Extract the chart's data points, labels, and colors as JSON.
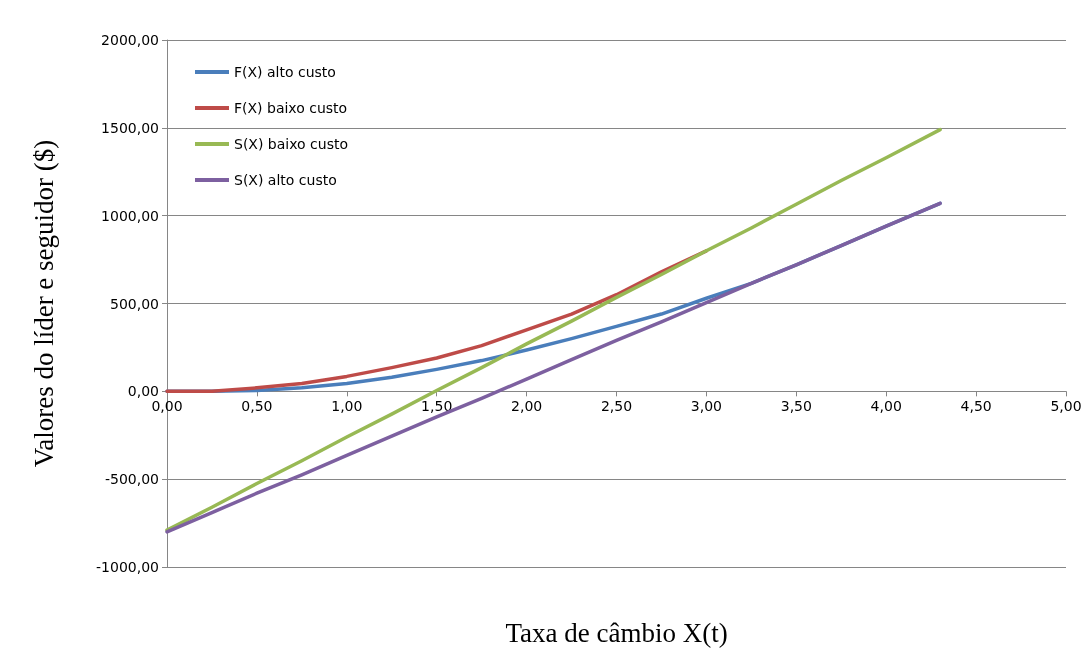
{
  "chart_data": {
    "type": "line",
    "xlabel": "Taxa de câmbio X(t)",
    "ylabel": "Valores do líder e seguidor ($)",
    "x": [
      0,
      0.25,
      0.5,
      0.75,
      1,
      1.25,
      1.5,
      1.75,
      2,
      2.25,
      2.5,
      2.75,
      3,
      3.25,
      3.5,
      3.75,
      4,
      4.3
    ],
    "series": [
      {
        "name": "F(X) alto custo",
        "color": "#4a7ebb",
        "values": [
          0,
          0,
          5,
          20,
          45,
          80,
          125,
          175,
          235,
          300,
          370,
          440,
          530,
          615,
          720,
          830,
          940,
          1070
        ]
      },
      {
        "name": "F(X) baixo custo",
        "color": "#be4b48",
        "values": [
          0,
          0,
          20,
          45,
          85,
          135,
          190,
          260,
          350,
          440,
          550,
          680,
          800,
          null,
          null,
          null,
          null,
          null
        ]
      },
      {
        "name": "S(X) baixo custo",
        "color": "#98b954",
        "values": [
          -790,
          -660,
          -525,
          -395,
          -260,
          -130,
          5,
          135,
          270,
          400,
          535,
          665,
          800,
          930,
          1065,
          1200,
          1330,
          1490
        ]
      },
      {
        "name": "S(X) alto custo",
        "color": "#7d60a0",
        "values": [
          -800,
          -690,
          -580,
          -475,
          -365,
          -255,
          -145,
          -40,
          70,
          180,
          290,
          395,
          505,
          615,
          720,
          830,
          940,
          1070
        ]
      }
    ],
    "xlim": [
      0,
      5
    ],
    "xticks": [
      {
        "value": 0,
        "label": "0,00"
      },
      {
        "value": 0.5,
        "label": "0,50"
      },
      {
        "value": 1,
        "label": "1,00"
      },
      {
        "value": 1.5,
        "label": "1,50"
      },
      {
        "value": 2,
        "label": "2,00"
      },
      {
        "value": 2.5,
        "label": "2,50"
      },
      {
        "value": 3,
        "label": "3,00"
      },
      {
        "value": 3.5,
        "label": "3,50"
      },
      {
        "value": 4,
        "label": "4,00"
      },
      {
        "value": 4.5,
        "label": "4,50"
      },
      {
        "value": 5,
        "label": "5,00"
      }
    ],
    "ylim": [
      -1000,
      2000
    ],
    "yticks": [
      {
        "value": -1000,
        "label": "-1000,00"
      },
      {
        "value": -500,
        "label": "-500,00"
      },
      {
        "value": 0,
        "label": "0,00"
      },
      {
        "value": 500,
        "label": "500,00"
      },
      {
        "value": 1000,
        "label": "1000,00"
      },
      {
        "value": 1500,
        "label": "1500,00"
      },
      {
        "value": 2000,
        "label": "2000,00"
      }
    ],
    "grid": "y",
    "legend": "top left",
    "marker": "none",
    "line_style": "solid"
  }
}
